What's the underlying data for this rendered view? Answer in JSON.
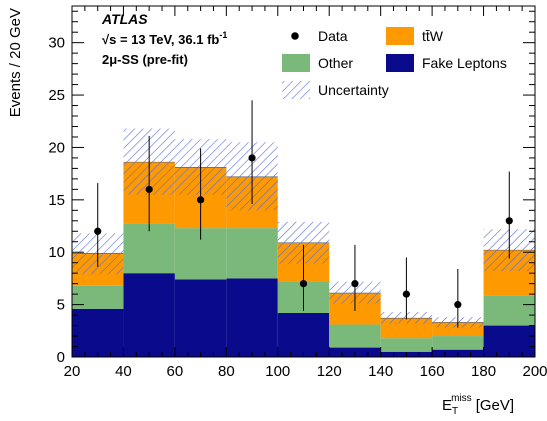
{
  "chart_data": {
    "type": "bar",
    "stacked": true,
    "x_edges": [
      20,
      40,
      60,
      80,
      100,
      120,
      140,
      160,
      180,
      200
    ],
    "x_centers": [
      30,
      50,
      70,
      90,
      110,
      130,
      150,
      170,
      190
    ],
    "xlim": [
      20,
      200
    ],
    "ylim": [
      0,
      33.5
    ],
    "x_ticks": [
      20,
      40,
      60,
      80,
      100,
      120,
      140,
      160,
      180,
      200
    ],
    "y_ticks": [
      0,
      5,
      10,
      15,
      20,
      25,
      30
    ],
    "xlabel_main": "E",
    "xlabel_sub": "T",
    "xlabel_sup": "miss",
    "xlabel_unit": "[GeV]",
    "ylabel": "Events / 20 GeV",
    "series": [
      {
        "name": "Fake Leptons",
        "color": "#0a0a8c",
        "values": [
          4.6,
          8.0,
          7.4,
          7.5,
          4.2,
          0.9,
          0.5,
          0.7,
          3.0
        ]
      },
      {
        "name": "Other",
        "color": "#7bb97b",
        "values": [
          2.2,
          4.7,
          4.9,
          4.8,
          3.0,
          2.2,
          1.3,
          1.3,
          2.9
        ]
      },
      {
        "name": "ttW",
        "color": "#ff9900",
        "values": [
          3.1,
          5.9,
          5.8,
          4.9,
          3.7,
          3.0,
          1.9,
          1.3,
          4.3
        ]
      }
    ],
    "totals": [
      9.9,
      18.6,
      18.1,
      17.2,
      10.9,
      6.1,
      3.7,
      3.3,
      10.2
    ],
    "uncertainty": {
      "name": "Uncertainty",
      "color": "#5a6bdc",
      "low": [
        7.9,
        15.5,
        15.5,
        14.0,
        8.9,
        5.1,
        3.2,
        2.8,
        8.2
      ],
      "high": [
        11.8,
        21.8,
        20.8,
        20.5,
        12.9,
        7.2,
        4.3,
        3.8,
        12.2
      ]
    },
    "data_points": {
      "name": "Data",
      "values": [
        12,
        16,
        15,
        19,
        7,
        7,
        6,
        5,
        13
      ],
      "err_low": [
        3.4,
        4.0,
        3.8,
        4.4,
        2.6,
        2.6,
        2.4,
        2.2,
        3.6
      ],
      "err_high": [
        4.6,
        5.1,
        4.9,
        5.5,
        3.7,
        3.7,
        3.5,
        3.4,
        4.7
      ]
    },
    "legend": {
      "placement": "top-right",
      "entries": [
        {
          "label": "Data",
          "kind": "marker"
        },
        {
          "label": "tt̄W",
          "kind": "box",
          "color": "#ff9900"
        },
        {
          "label": "Other",
          "kind": "box",
          "color": "#7bb97b"
        },
        {
          "label": "Fake Leptons",
          "kind": "box",
          "color": "#0a0a8c"
        },
        {
          "label": "Uncertainty",
          "kind": "hatch",
          "color": "#5a6bdc"
        }
      ]
    },
    "annotations": {
      "experiment": "ATLAS",
      "energy_text": "√s = 13 TeV, 36.1 fb",
      "energy_sup": "-1",
      "selection": "2μ-SS (pre-fit)"
    }
  }
}
